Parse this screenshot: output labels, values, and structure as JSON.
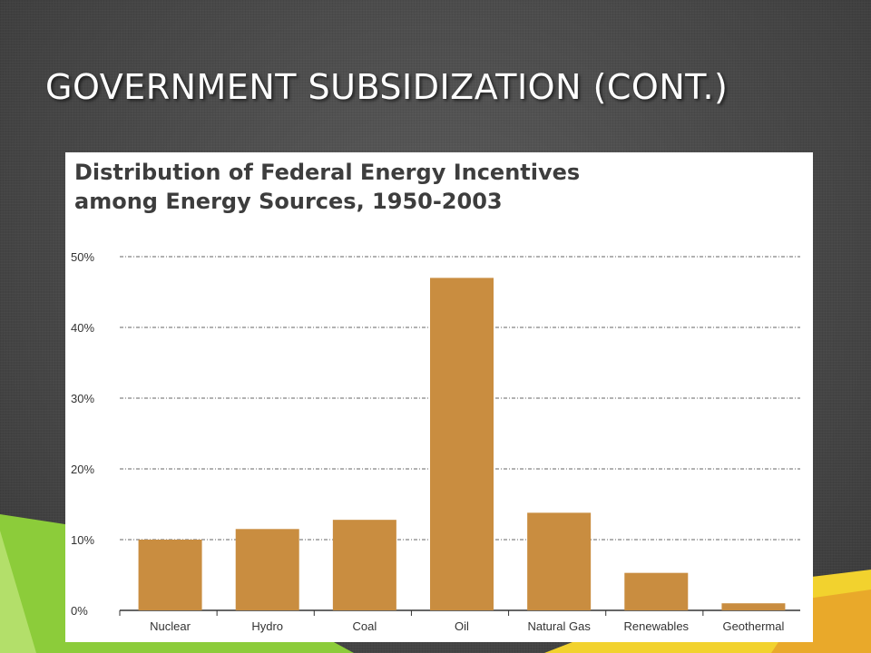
{
  "slide": {
    "title": "GOVERNMENT SUBSIDIZATION (CONT.)"
  },
  "colors": {
    "background": "#4a4a4a",
    "bar": "#c98d40",
    "decor_green": "#8ccc3a",
    "decor_yellow": "#f2d22e"
  },
  "chart_data": {
    "type": "bar",
    "title_lines": [
      "Distribution of Federal Energy Incentives",
      "among Energy Sources, 1950-2003"
    ],
    "categories": [
      "Nuclear",
      "Hydro",
      "Coal",
      "Oil",
      "Natural Gas",
      "Renewables",
      "Geothermal"
    ],
    "values": [
      10,
      11.5,
      12.8,
      47,
      13.8,
      5.3,
      1
    ],
    "y_ticks": [
      0,
      10,
      20,
      30,
      40,
      50
    ],
    "y_tick_labels": [
      "0%",
      "10%",
      "20%",
      "30%",
      "40%",
      "50%"
    ],
    "ylim": [
      0,
      50
    ],
    "xlabel": "",
    "ylabel": "",
    "grid": "dashed horizontal",
    "legend": "none"
  }
}
